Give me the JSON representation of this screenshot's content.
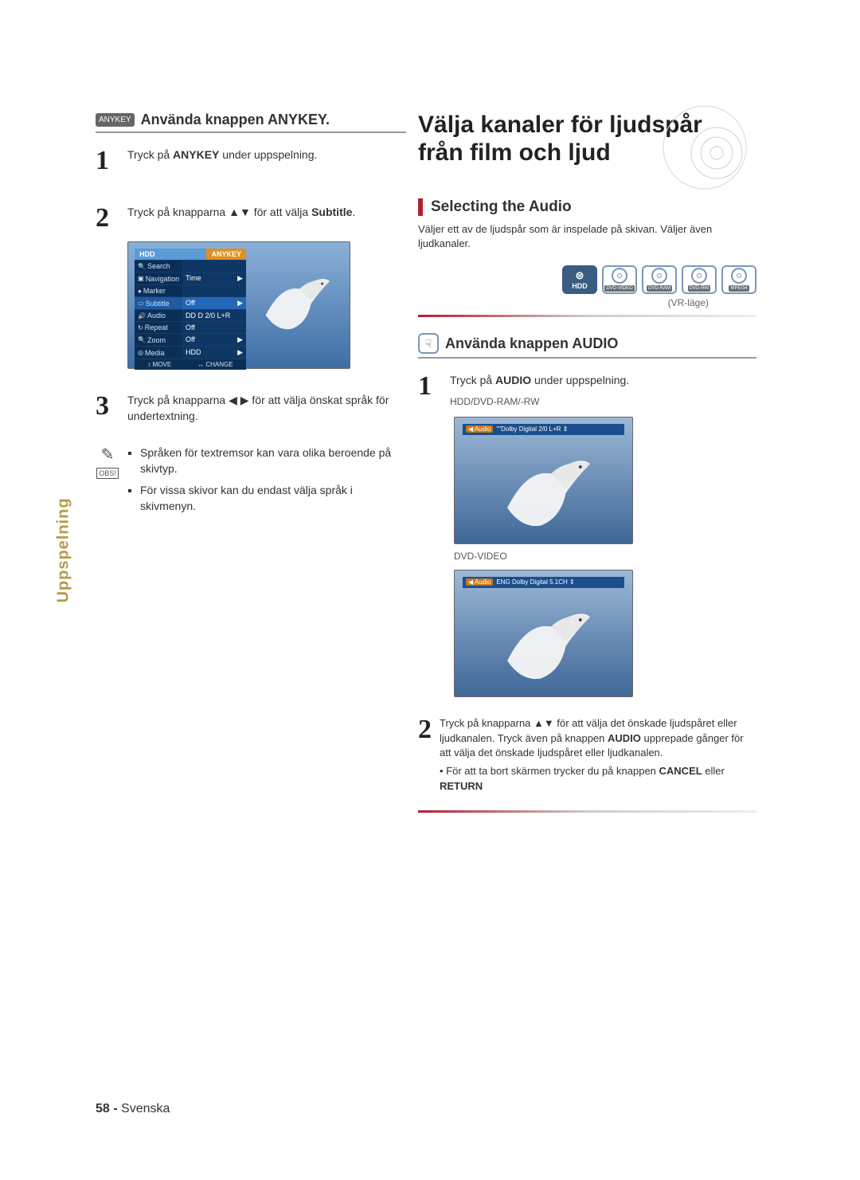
{
  "side_tab": "Uppspelning",
  "left": {
    "heading_badge": "ANYKEY",
    "heading_text": "Använda knappen ANYKEY.",
    "step1_pre": "Tryck på ",
    "step1_b": "ANYKEY",
    "step1_post": " under uppspelning.",
    "step2_pre": "Tryck på knapparna ▲▼ för att välja ",
    "step2_b": "Subtitle",
    "step2_post": ".",
    "step3": "Tryck på knapparna ◀ ▶ för att välja önskat språk för undertextning.",
    "note_label": "OBS!",
    "note_items": [
      "Språken för textremsor kan vara olika beroende på skivtyp.",
      "För vissa skivor kan du endast välja språk i skivmenyn."
    ],
    "menu": {
      "head_left": "HDD",
      "head_right": "ANYKEY",
      "rows": [
        {
          "k": "Search",
          "v": "",
          "icon": "🔍"
        },
        {
          "k": "Navigation",
          "v": "Time",
          "icon": "▣"
        },
        {
          "k": "Marker",
          "v": "",
          "icon": "●"
        },
        {
          "k": "Subtitle",
          "v": "Off",
          "icon": "▭",
          "hi": true
        },
        {
          "k": "Audio",
          "v": "DD D 2/0 L+R",
          "icon": "🔊"
        },
        {
          "k": "Repeat",
          "v": "Off",
          "icon": "↻"
        },
        {
          "k": "Zoom",
          "v": "Off",
          "icon": "🔍"
        },
        {
          "k": "Media",
          "v": "HDD",
          "icon": "◎"
        }
      ],
      "foot_move": "↕ MOVE",
      "foot_change": "↔ CHANGE"
    }
  },
  "right": {
    "title_l1": "Välja kanaler för ljudspår",
    "title_l2": "från film och ljud",
    "sub1": "Selecting the Audio",
    "desc": "Väljer ett av de ljudspår som är inspelade på skivan. Väljer även ljudkanaler.",
    "discs": [
      "HDD",
      "DVD-VIDEO",
      "DVD-RAM",
      "DVD-RW",
      "MPEG4"
    ],
    "disc_caption": "(VR-läge)",
    "sub2": "Använda knappen AUDIO",
    "s1_pre": "Tryck på ",
    "s1_b": "AUDIO",
    "s1_post": " under uppspelning.",
    "cap1": "HDD/DVD-RAM/-RW",
    "audio_bar1_tag": "◀ Audio",
    "audio_bar1_text": "\"\"Dolby Digital  2/0 L+R ⇕",
    "cap2": "DVD-VIDEO",
    "audio_bar2_tag": "◀ Audio",
    "audio_bar2_text": "ENG Dolby Digital  5.1CH ⇕",
    "s2_line1a": "Tryck på knapparna ▲▼ för att välja det önskade ljudspåret eller ljudkanalen. Tryck även på knappen ",
    "s2_b1": "AUDIO",
    "s2_line1b": " upprepade gånger för att välja det önskade ljudspåret eller ljudkanalen.",
    "s2_bullet_pre": "• För att ta bort skärmen trycker du på knappen ",
    "s2_b2": "CANCEL",
    "s2_mid": " eller ",
    "s2_b3": "RETURN"
  },
  "footer_num": "58 - ",
  "footer_text": "Svenska",
  "colors": {
    "red": "#b51f2a",
    "badge": "#666666",
    "disc_border": "#7a97b8"
  }
}
